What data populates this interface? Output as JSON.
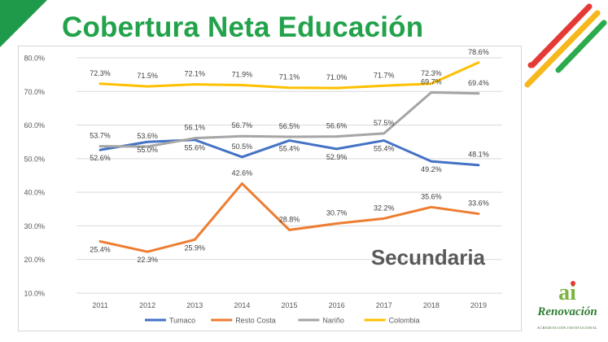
{
  "page": {
    "title": "Cobertura Neta Educación",
    "logo_text": "Renovación",
    "logo_sub": "ACREDITACIÓN INSTITUCIONAL",
    "logo_letters": "ai"
  },
  "chart_data": {
    "type": "line",
    "title": "",
    "xlabel": "",
    "ylabel": "",
    "annotation": "Secundaria",
    "categories": [
      "2011",
      "2012",
      "2013",
      "2014",
      "2015",
      "2016",
      "2017",
      "2018",
      "2019"
    ],
    "yticks": [
      "10.0%",
      "20.0%",
      "30.0%",
      "40.0%",
      "50.0%",
      "60.0%",
      "70.0%",
      "80.0%"
    ],
    "ylim": [
      0.1,
      0.8
    ],
    "grid": true,
    "legend_position": "bottom",
    "series": [
      {
        "name": "Tumaco",
        "color": "#4472c4",
        "values": [
          0.526,
          0.55,
          0.556,
          0.505,
          0.554,
          0.529,
          0.554,
          0.492,
          0.481
        ],
        "labels": [
          "52.6%",
          "55.0%",
          "55.6%",
          "50.5%",
          "55.4%",
          "52.9%",
          "55.4%",
          "49.2%",
          "48.1%"
        ]
      },
      {
        "name": "Resto Costa",
        "color": "#ed7d31",
        "values": [
          0.254,
          0.223,
          0.259,
          0.426,
          0.288,
          0.307,
          0.322,
          0.356,
          0.336
        ],
        "labels": [
          "25.4%",
          "22.3%",
          "25.9%",
          "42.6%",
          "28.8%",
          "30.7%",
          "32.2%",
          "35.6%",
          "33.6%"
        ]
      },
      {
        "name": "Nariño",
        "color": "#a5a5a5",
        "values": [
          0.537,
          0.536,
          0.561,
          0.567,
          0.565,
          0.566,
          0.575,
          0.697,
          0.694
        ],
        "labels": [
          "53.7%",
          "53.6%",
          "56.1%",
          "56.7%",
          "56.5%",
          "56.6%",
          "57.5%",
          "69.7%",
          "69.4%"
        ]
      },
      {
        "name": "Colombia",
        "color": "#ffc000",
        "values": [
          0.723,
          0.715,
          0.721,
          0.719,
          0.711,
          0.71,
          0.717,
          0.723,
          0.786
        ],
        "labels": [
          "72.3%",
          "71.5%",
          "72.1%",
          "71.9%",
          "71.1%",
          "71.0%",
          "71.7%",
          "72.3%",
          "78.6%"
        ]
      }
    ]
  },
  "colors": {
    "title_green": "#22a24a",
    "corner_green": "#1f9a4a",
    "stripe_red": "#e53935",
    "stripe_yellow": "#f6b81c",
    "stripe_green": "#2bab4b"
  }
}
